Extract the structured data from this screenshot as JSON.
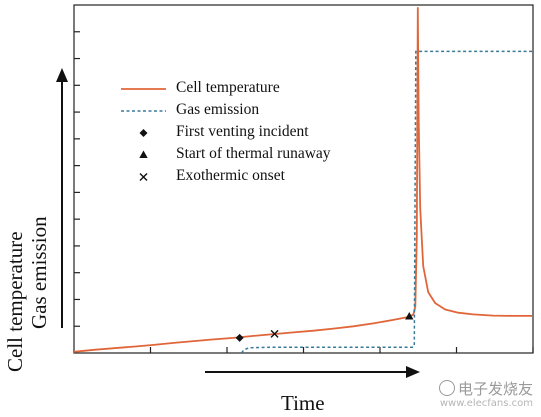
{
  "chart_data": {
    "type": "line",
    "xlabel": "Time",
    "ylabel_lines": [
      "Cell temperature",
      "Gas emission"
    ],
    "x_ticks": 6,
    "y_ticks": 12,
    "legend_position": "top-left",
    "series": [
      {
        "name": "Cell temperature",
        "style": "solid",
        "color": "#e0663a",
        "points": [
          [
            0,
            0.2
          ],
          [
            20,
            0.55
          ],
          [
            45,
            0.9
          ],
          [
            60,
            1.1
          ],
          [
            80,
            1.4
          ],
          [
            100,
            1.75
          ],
          [
            120,
            2.05
          ],
          [
            140,
            2.35
          ],
          [
            160,
            2.6
          ],
          [
            180,
            2.95
          ],
          [
            200,
            3.25
          ],
          [
            220,
            3.55
          ],
          [
            240,
            3.85
          ],
          [
            260,
            4.2
          ],
          [
            280,
            4.6
          ],
          [
            300,
            5.1
          ],
          [
            320,
            5.7
          ],
          [
            335,
            6.2
          ],
          [
            340,
            6.6
          ],
          [
            342,
            8
          ],
          [
            343.5,
            20
          ],
          [
            344.5,
            59.5
          ],
          [
            345.5,
            40
          ],
          [
            347,
            25
          ],
          [
            350,
            15
          ],
          [
            355,
            10.5
          ],
          [
            362,
            8.6
          ],
          [
            372,
            7.5
          ],
          [
            385,
            6.95
          ],
          [
            400,
            6.65
          ],
          [
            420,
            6.45
          ],
          [
            440,
            6.4
          ],
          [
            459,
            6.4
          ]
        ]
      },
      {
        "name": "Gas emission",
        "style": "dashed",
        "color": "#3a7a98",
        "points": [
          [
            168,
            0
          ],
          [
            170,
            0.5
          ],
          [
            175,
            0.9
          ],
          [
            200,
            1.0
          ],
          [
            300,
            1.0
          ],
          [
            340,
            1.0
          ],
          [
            341,
            1.5
          ],
          [
            342.5,
            52
          ],
          [
            459,
            52
          ]
        ]
      }
    ],
    "markers": [
      {
        "name": "First venting incident",
        "symbol": "diamond",
        "x": 166,
        "y": 2.6
      },
      {
        "name": "Start of thermal runaway",
        "symbol": "triangle",
        "x": 336,
        "y": 6.3
      },
      {
        "name": "Exothermic onset",
        "symbol": "x",
        "x": 201,
        "y": 3.3
      }
    ],
    "xlim": [
      0,
      460
    ],
    "ylim": [
      0,
      60
    ]
  },
  "watermark": {
    "text": "电子发烧友",
    "url": "www.elecfans.com"
  }
}
